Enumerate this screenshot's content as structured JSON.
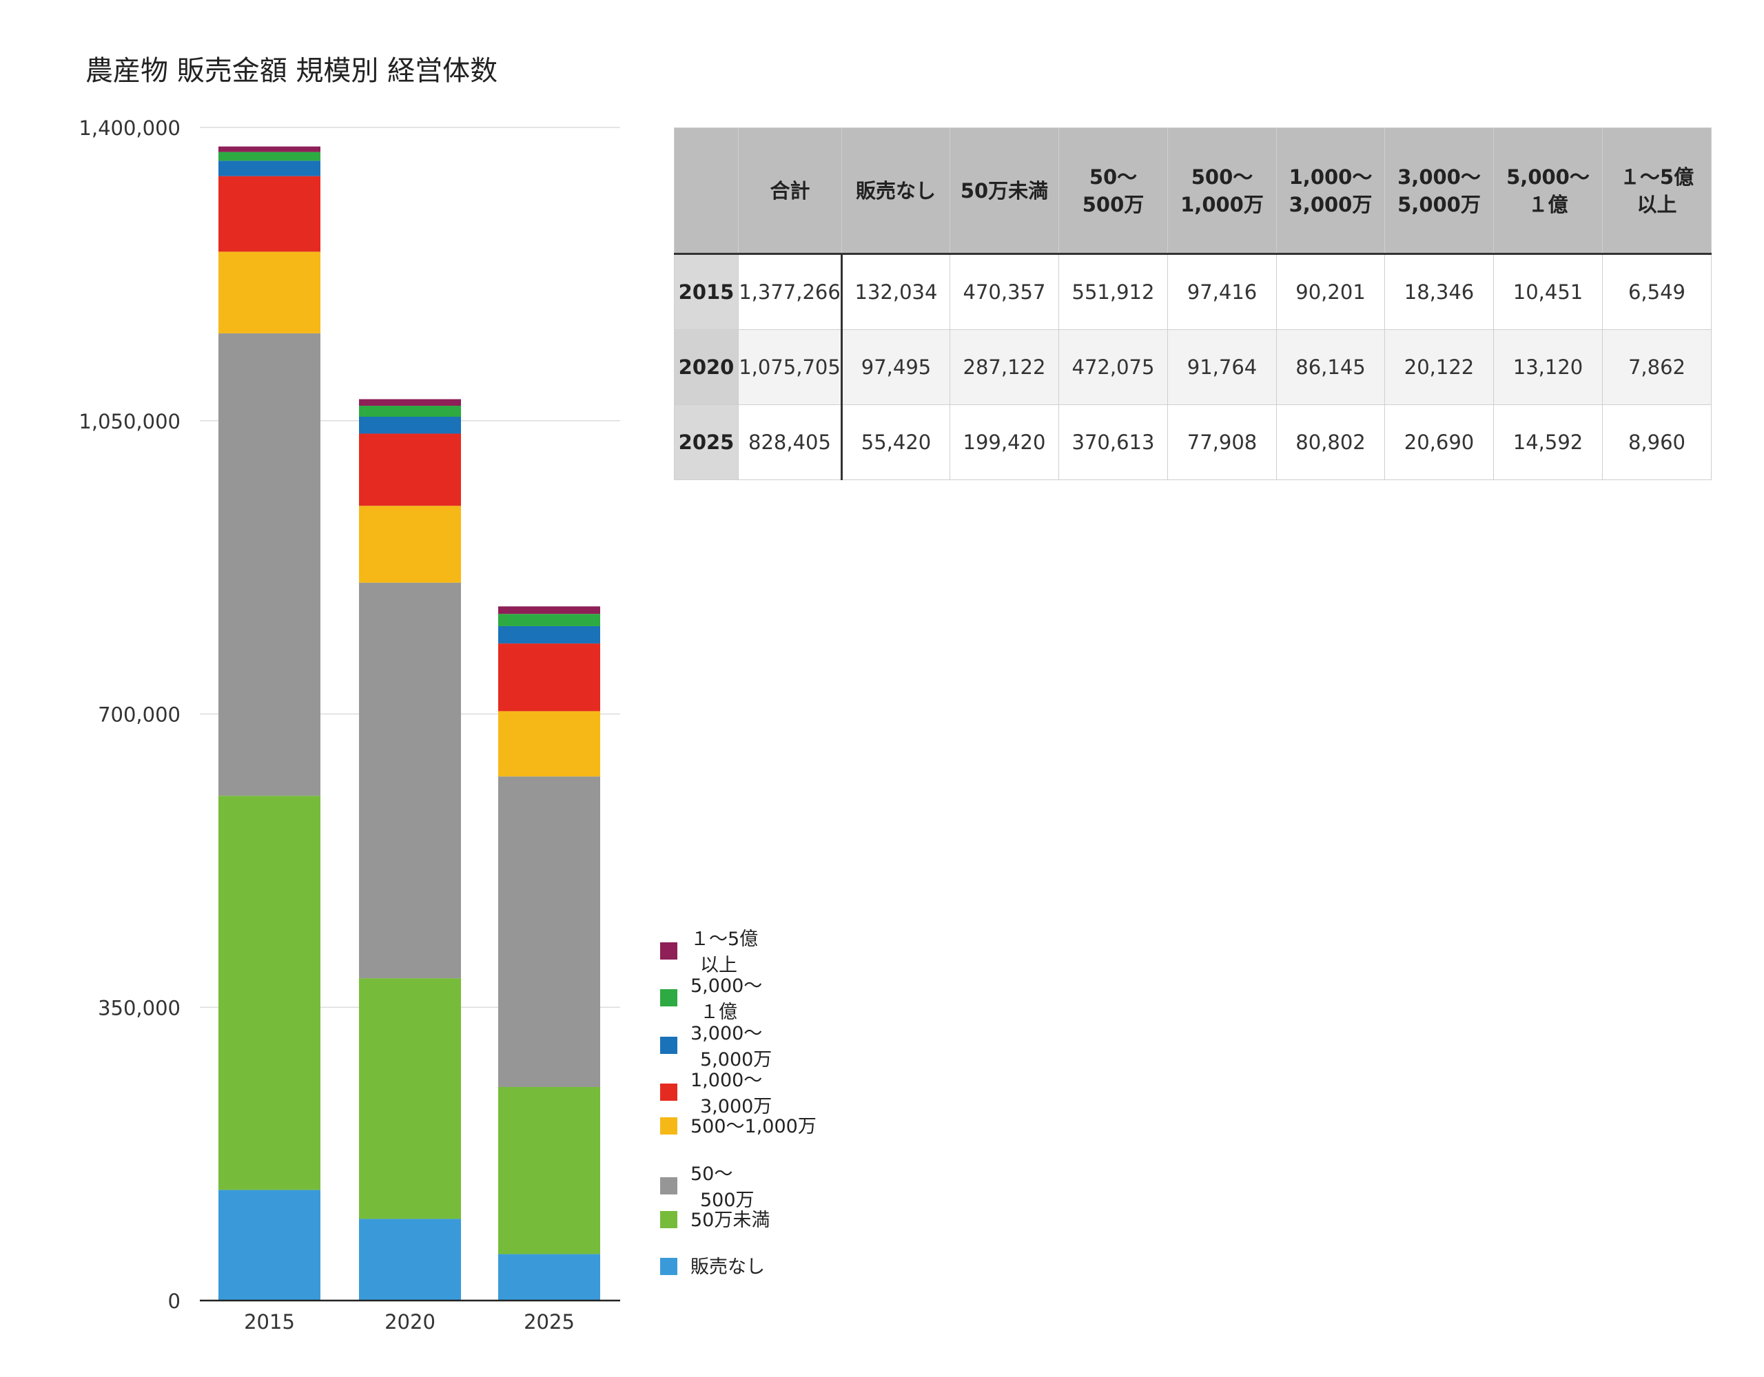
{
  "chart_data": {
    "type": "bar",
    "stacked": true,
    "title": "農産物 販売金額 規模別 経営体数",
    "categories": [
      "2015",
      "2020",
      "2025"
    ],
    "yticks": [
      "1,400,000",
      "1,050,000",
      "700,000",
      "350,000",
      "0"
    ],
    "ylim": [
      0,
      1400000
    ],
    "grid": true,
    "legend_position": "bottom-right",
    "series": [
      {
        "name": "販売なし",
        "values": [
          132034,
          97495,
          55420
        ],
        "color": "#3a9ad9"
      },
      {
        "name": "50万未満",
        "values": [
          470357,
          287122,
          199420
        ],
        "color": "#76bc3a"
      },
      {
        "name": "50〜\n500万",
        "values": [
          551912,
          472075,
          370613
        ],
        "color": "#969696"
      },
      {
        "name": "500〜1,000万",
        "values": [
          97416,
          91764,
          77908
        ],
        "color": "#f6b817"
      },
      {
        "name": "1,000〜\n3,000万",
        "values": [
          90201,
          86145,
          80802
        ],
        "color": "#e52b21"
      },
      {
        "name": "3,000〜\n5,000万",
        "values": [
          18346,
          20122,
          20690
        ],
        "color": "#1a72b8"
      },
      {
        "name": "5,000〜\n１億",
        "values": [
          10451,
          13120,
          14592
        ],
        "color": "#2daa42"
      },
      {
        "name": "１〜5億\n以上",
        "values": [
          6549,
          7862,
          8960
        ],
        "color": "#8e1f57"
      }
    ],
    "legend_order": [
      "１〜5億\n以上",
      "5,000〜\n１億",
      "3,000〜\n5,000万",
      "1,000〜\n3,000万",
      "500〜1,000万",
      "50〜\n500万",
      "50万未満",
      "販売なし"
    ]
  },
  "table": {
    "headers": [
      "",
      "合計",
      "販売なし",
      "50万未満",
      "50〜\n500万",
      "500〜\n1,000万",
      "1,000〜\n3,000万",
      "3,000〜\n5,000万",
      "5,000〜\n１億",
      "１〜5億\n以上"
    ],
    "rows": [
      {
        "year": "2015",
        "cells": [
          "1,377,266",
          "132,034",
          "470,357",
          "551,912",
          "97,416",
          "90,201",
          "18,346",
          "10,451",
          "6,549"
        ]
      },
      {
        "year": "2020",
        "cells": [
          "1,075,705",
          "97,495",
          "287,122",
          "472,075",
          "91,764",
          "86,145",
          "20,122",
          "13,120",
          "7,862"
        ]
      },
      {
        "year": "2025",
        "cells": [
          "828,405",
          "55,420",
          "199,420",
          "370,613",
          "77,908",
          "80,802",
          "20,690",
          "14,592",
          "8,960"
        ]
      }
    ]
  }
}
